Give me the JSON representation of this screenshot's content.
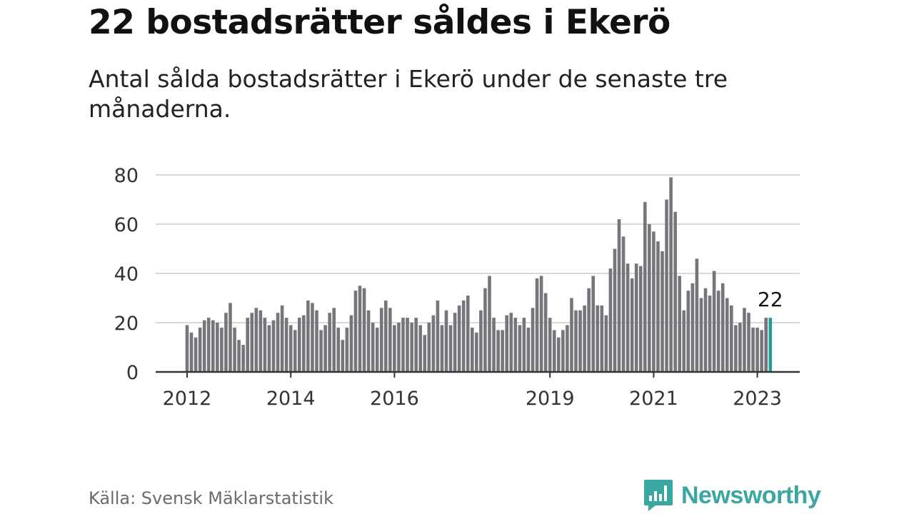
{
  "header": {
    "title": "22 bostadsrätter såldes i Ekerö",
    "subtitle": "Antal sålda bostadsrätter i Ekerö under de senaste tre månaderna."
  },
  "footer": {
    "source": "Källa: Svensk Mäklarstatistik",
    "brand": "Newsworthy"
  },
  "colors": {
    "bar": "#76757b",
    "highlight": "#1f9e97",
    "grid": "#d9d9d9",
    "axis": "#333333",
    "brand": "#3aa7a0"
  },
  "chart_data": {
    "type": "bar",
    "title": "22 bostadsrätter såldes i Ekerö",
    "xlabel": "",
    "ylabel": "",
    "ylim": [
      0,
      80
    ],
    "y_ticks": [
      0,
      20,
      40,
      60,
      80
    ],
    "grid": true,
    "x_start": "2012-01",
    "x_ticks": [
      {
        "label": "2012",
        "index": 0
      },
      {
        "label": "2014",
        "index": 24
      },
      {
        "label": "2016",
        "index": 48
      },
      {
        "label": "2019",
        "index": 84
      },
      {
        "label": "2021",
        "index": 108
      },
      {
        "label": "2023",
        "index": 132
      }
    ],
    "highlight_index": 135,
    "annotation": "22",
    "values": [
      19,
      16,
      14,
      18,
      21,
      22,
      21,
      20,
      18,
      24,
      28,
      18,
      13,
      11,
      22,
      24,
      26,
      25,
      22,
      19,
      21,
      24,
      27,
      22,
      19,
      17,
      22,
      23,
      29,
      28,
      25,
      17,
      19,
      24,
      26,
      18,
      13,
      18,
      23,
      33,
      35,
      34,
      25,
      20,
      18,
      26,
      29,
      26,
      19,
      20,
      22,
      22,
      20,
      22,
      19,
      15,
      20,
      23,
      29,
      19,
      25,
      19,
      24,
      27,
      29,
      31,
      18,
      16,
      25,
      34,
      39,
      22,
      17,
      17,
      23,
      24,
      22,
      19,
      22,
      18,
      26,
      38,
      39,
      32,
      22,
      17,
      14,
      17,
      19,
      30,
      25,
      25,
      27,
      34,
      39,
      27,
      27,
      23,
      42,
      50,
      62,
      55,
      44,
      38,
      44,
      43,
      69,
      60,
      57,
      53,
      49,
      70,
      79,
      65,
      39,
      25,
      33,
      36,
      46,
      30,
      34,
      31,
      41,
      33,
      36,
      30,
      27,
      19,
      20,
      26,
      24,
      18,
      18,
      17,
      22,
      22
    ]
  }
}
